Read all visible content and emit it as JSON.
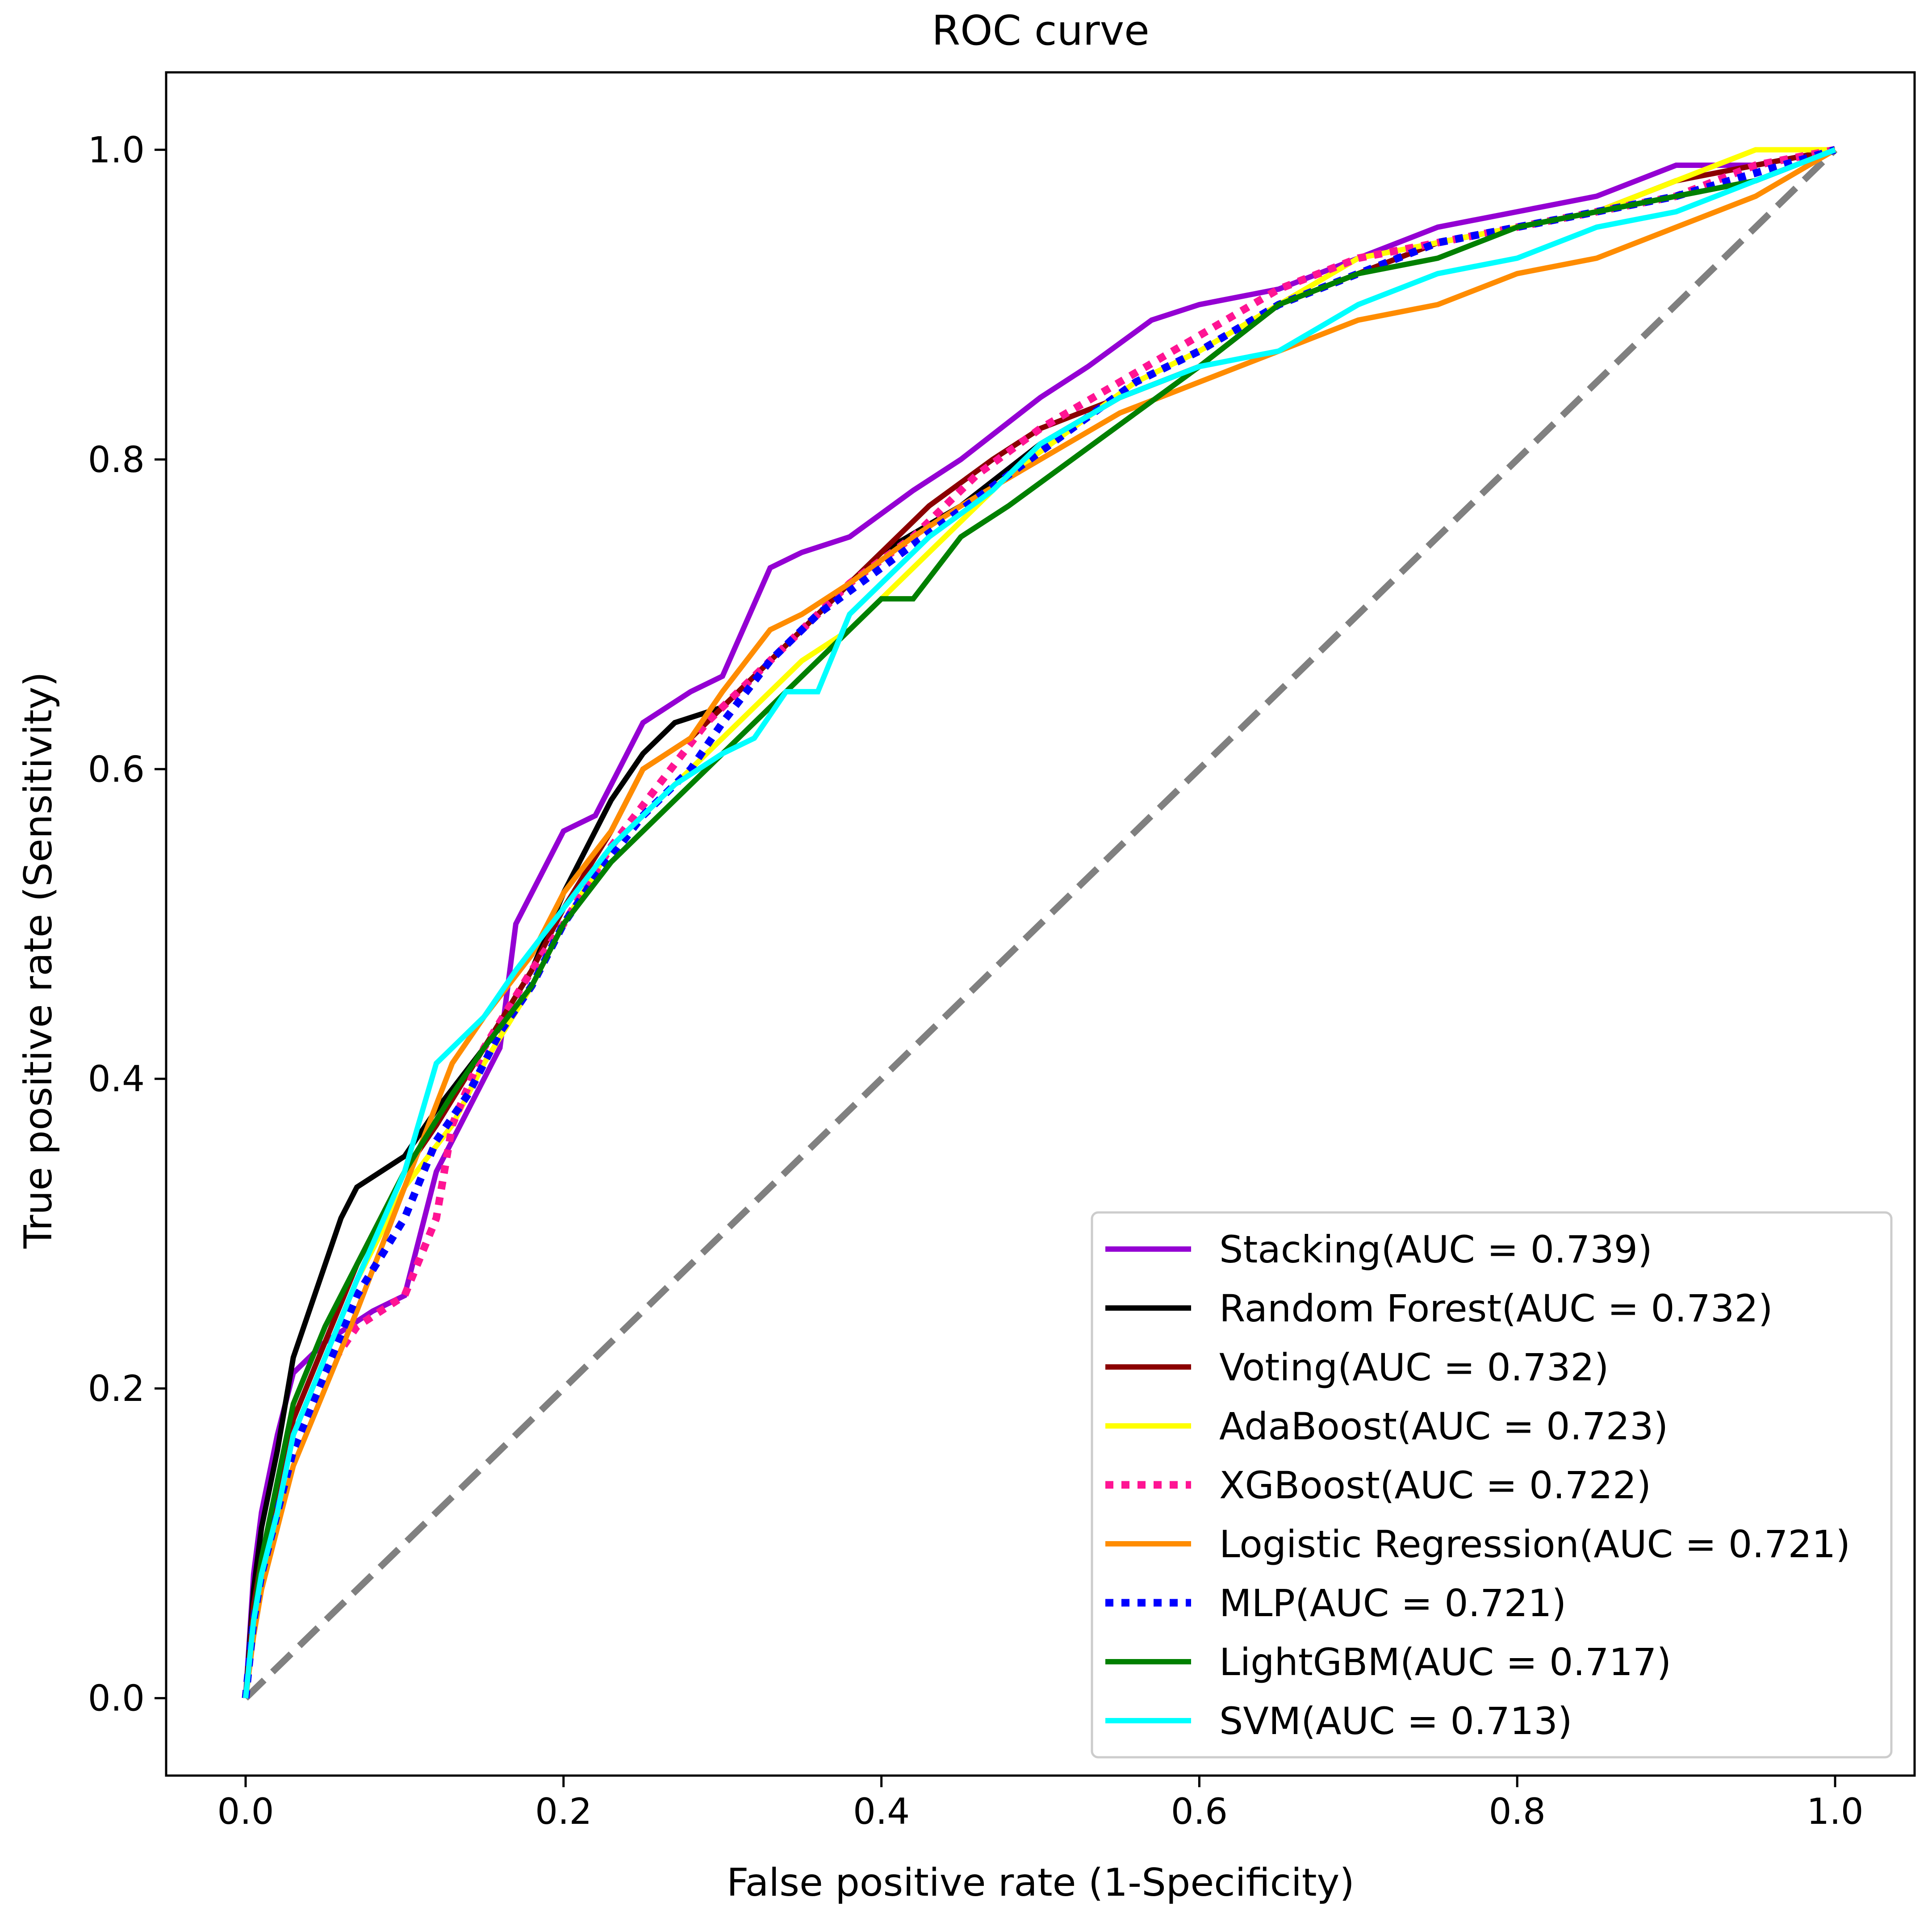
{
  "chart_data": {
    "type": "line",
    "title": "ROC curve",
    "xlabel": "False positive rate (1-Specificity)",
    "ylabel": "True positive rate (Sensitivity)",
    "xlim": [
      -0.05,
      1.05
    ],
    "ylim": [
      -0.05,
      1.05
    ],
    "xticks": [
      0.0,
      0.2,
      0.4,
      0.6,
      0.8,
      1.0
    ],
    "yticks": [
      0.0,
      0.2,
      0.4,
      0.6,
      0.8,
      1.0
    ],
    "xtick_labels": [
      "0.0",
      "0.2",
      "0.4",
      "0.6",
      "0.8",
      "1.0"
    ],
    "ytick_labels": [
      "0.0",
      "0.2",
      "0.4",
      "0.6",
      "0.8",
      "1.0"
    ],
    "legend_position": "lower-right",
    "grid": false,
    "diagonal": {
      "x": [
        0,
        1
      ],
      "y": [
        0,
        1
      ],
      "color": "#808080",
      "style": "dashed"
    },
    "series": [
      {
        "name": "Stacking",
        "label": "Stacking(AUC = 0.739)",
        "auc": 0.739,
        "color": "#9400d3",
        "style": "solid",
        "x": [
          0,
          0.005,
          0.01,
          0.02,
          0.03,
          0.05,
          0.08,
          0.1,
          0.12,
          0.14,
          0.16,
          0.17,
          0.2,
          0.22,
          0.25,
          0.28,
          0.3,
          0.33,
          0.35,
          0.38,
          0.42,
          0.45,
          0.5,
          0.53,
          0.57,
          0.6,
          0.65,
          0.7,
          0.75,
          0.8,
          0.85,
          0.9,
          0.95,
          1.0
        ],
        "y": [
          0,
          0.08,
          0.12,
          0.17,
          0.21,
          0.23,
          0.25,
          0.26,
          0.34,
          0.38,
          0.42,
          0.5,
          0.56,
          0.57,
          0.63,
          0.65,
          0.66,
          0.73,
          0.74,
          0.75,
          0.78,
          0.8,
          0.84,
          0.86,
          0.89,
          0.9,
          0.91,
          0.93,
          0.95,
          0.96,
          0.97,
          0.99,
          0.99,
          1.0
        ]
      },
      {
        "name": "Random Forest",
        "label": "Random Forest(AUC = 0.732)",
        "auc": 0.732,
        "color": "#000000",
        "style": "solid",
        "x": [
          0,
          0.005,
          0.01,
          0.02,
          0.03,
          0.05,
          0.06,
          0.07,
          0.1,
          0.12,
          0.15,
          0.18,
          0.2,
          0.23,
          0.25,
          0.27,
          0.3,
          0.33,
          0.36,
          0.4,
          0.45,
          0.5,
          0.55,
          0.6,
          0.65,
          0.7,
          0.75,
          0.8,
          0.85,
          0.9,
          0.95,
          1.0
        ],
        "y": [
          0,
          0.07,
          0.11,
          0.16,
          0.22,
          0.28,
          0.31,
          0.33,
          0.35,
          0.38,
          0.42,
          0.47,
          0.52,
          0.58,
          0.61,
          0.63,
          0.64,
          0.67,
          0.7,
          0.74,
          0.77,
          0.81,
          0.84,
          0.86,
          0.9,
          0.92,
          0.94,
          0.95,
          0.96,
          0.97,
          0.98,
          1.0
        ]
      },
      {
        "name": "Voting",
        "label": "Voting(AUC = 0.732)",
        "auc": 0.732,
        "color": "#8b0000",
        "style": "solid",
        "x": [
          0,
          0.005,
          0.01,
          0.02,
          0.03,
          0.05,
          0.07,
          0.1,
          0.12,
          0.15,
          0.18,
          0.2,
          0.23,
          0.25,
          0.28,
          0.3,
          0.33,
          0.36,
          0.4,
          0.43,
          0.47,
          0.5,
          0.55,
          0.6,
          0.65,
          0.7,
          0.75,
          0.8,
          0.85,
          0.9,
          0.95,
          1.0
        ],
        "y": [
          0,
          0.06,
          0.09,
          0.13,
          0.18,
          0.23,
          0.28,
          0.34,
          0.37,
          0.42,
          0.47,
          0.51,
          0.56,
          0.6,
          0.62,
          0.64,
          0.67,
          0.7,
          0.74,
          0.77,
          0.8,
          0.82,
          0.84,
          0.86,
          0.9,
          0.92,
          0.94,
          0.95,
          0.96,
          0.98,
          0.99,
          1.0
        ]
      },
      {
        "name": "AdaBoost",
        "label": "AdaBoost(AUC = 0.723)",
        "auc": 0.723,
        "color": "#ffff00",
        "style": "solid",
        "x": [
          0,
          0.005,
          0.01,
          0.02,
          0.03,
          0.05,
          0.07,
          0.1,
          0.13,
          0.15,
          0.18,
          0.2,
          0.23,
          0.26,
          0.29,
          0.32,
          0.35,
          0.38,
          0.41,
          0.44,
          0.48,
          0.52,
          0.56,
          0.6,
          0.65,
          0.7,
          0.75,
          0.8,
          0.85,
          0.9,
          0.95,
          1.0
        ],
        "y": [
          0,
          0.05,
          0.08,
          0.12,
          0.17,
          0.22,
          0.27,
          0.33,
          0.37,
          0.41,
          0.46,
          0.5,
          0.55,
          0.58,
          0.61,
          0.64,
          0.67,
          0.69,
          0.72,
          0.75,
          0.79,
          0.82,
          0.85,
          0.87,
          0.9,
          0.93,
          0.94,
          0.95,
          0.96,
          0.98,
          1.0,
          1.0
        ]
      },
      {
        "name": "XGBoost",
        "label": "XGBoost(AUC = 0.722)",
        "auc": 0.722,
        "color": "#ff1493",
        "style": "dotted",
        "x": [
          0,
          0.005,
          0.01,
          0.02,
          0.03,
          0.05,
          0.07,
          0.1,
          0.12,
          0.13,
          0.15,
          0.18,
          0.2,
          0.23,
          0.26,
          0.29,
          0.32,
          0.35,
          0.38,
          0.42,
          0.46,
          0.5,
          0.55,
          0.6,
          0.65,
          0.7,
          0.75,
          0.8,
          0.85,
          0.9,
          0.95,
          1.0
        ],
        "y": [
          0,
          0.05,
          0.08,
          0.12,
          0.16,
          0.21,
          0.24,
          0.26,
          0.31,
          0.37,
          0.42,
          0.47,
          0.5,
          0.55,
          0.59,
          0.63,
          0.66,
          0.69,
          0.72,
          0.75,
          0.79,
          0.82,
          0.85,
          0.88,
          0.91,
          0.93,
          0.94,
          0.95,
          0.96,
          0.97,
          0.99,
          1.0
        ]
      },
      {
        "name": "Logistic Regression",
        "label": "Logistic Regression(AUC = 0.721)",
        "auc": 0.721,
        "color": "#ff8c00",
        "style": "solid",
        "x": [
          0,
          0.005,
          0.01,
          0.02,
          0.03,
          0.05,
          0.07,
          0.1,
          0.13,
          0.15,
          0.18,
          0.2,
          0.23,
          0.25,
          0.28,
          0.3,
          0.33,
          0.35,
          0.38,
          0.42,
          0.45,
          0.5,
          0.55,
          0.6,
          0.65,
          0.7,
          0.75,
          0.8,
          0.85,
          0.9,
          0.95,
          1.0
        ],
        "y": [
          0,
          0.04,
          0.07,
          0.11,
          0.15,
          0.2,
          0.25,
          0.33,
          0.41,
          0.44,
          0.48,
          0.52,
          0.56,
          0.6,
          0.62,
          0.65,
          0.69,
          0.7,
          0.72,
          0.75,
          0.77,
          0.8,
          0.83,
          0.85,
          0.87,
          0.89,
          0.9,
          0.92,
          0.93,
          0.95,
          0.97,
          1.0
        ]
      },
      {
        "name": "MLP",
        "label": "MLP(AUC = 0.721)",
        "auc": 0.721,
        "color": "#0000ff",
        "style": "dotted",
        "x": [
          0,
          0.005,
          0.01,
          0.02,
          0.03,
          0.05,
          0.07,
          0.1,
          0.12,
          0.14,
          0.16,
          0.18,
          0.2,
          0.22,
          0.25,
          0.28,
          0.3,
          0.33,
          0.36,
          0.4,
          0.44,
          0.48,
          0.52,
          0.56,
          0.6,
          0.65,
          0.7,
          0.75,
          0.8,
          0.85,
          0.9,
          1.0
        ],
        "y": [
          0,
          0.05,
          0.08,
          0.12,
          0.16,
          0.21,
          0.26,
          0.31,
          0.36,
          0.39,
          0.43,
          0.46,
          0.5,
          0.53,
          0.57,
          0.6,
          0.63,
          0.67,
          0.7,
          0.73,
          0.76,
          0.79,
          0.82,
          0.85,
          0.87,
          0.9,
          0.92,
          0.94,
          0.95,
          0.96,
          0.97,
          1.0
        ]
      },
      {
        "name": "LightGBM",
        "label": "LightGBM(AUC = 0.717)",
        "auc": 0.717,
        "color": "#008000",
        "style": "solid",
        "x": [
          0,
          0.005,
          0.01,
          0.02,
          0.03,
          0.05,
          0.07,
          0.1,
          0.13,
          0.15,
          0.18,
          0.2,
          0.23,
          0.26,
          0.29,
          0.32,
          0.35,
          0.38,
          0.4,
          0.42,
          0.45,
          0.48,
          0.52,
          0.56,
          0.6,
          0.65,
          0.7,
          0.75,
          0.8,
          0.85,
          0.9,
          0.95,
          1.0
        ],
        "y": [
          0,
          0.05,
          0.09,
          0.14,
          0.19,
          0.24,
          0.28,
          0.34,
          0.39,
          0.42,
          0.46,
          0.5,
          0.54,
          0.57,
          0.6,
          0.63,
          0.66,
          0.69,
          0.71,
          0.71,
          0.75,
          0.77,
          0.8,
          0.83,
          0.86,
          0.9,
          0.92,
          0.93,
          0.95,
          0.96,
          0.97,
          0.98,
          1.0
        ]
      },
      {
        "name": "SVM",
        "label": "SVM(AUC = 0.713)",
        "auc": 0.713,
        "color": "#00ffff",
        "style": "solid",
        "x": [
          0,
          0.005,
          0.01,
          0.02,
          0.03,
          0.05,
          0.07,
          0.1,
          0.12,
          0.15,
          0.17,
          0.2,
          0.23,
          0.27,
          0.3,
          0.32,
          0.34,
          0.36,
          0.38,
          0.4,
          0.43,
          0.47,
          0.5,
          0.55,
          0.6,
          0.65,
          0.7,
          0.75,
          0.8,
          0.85,
          0.9,
          0.95,
          1.0
        ],
        "y": [
          0,
          0.05,
          0.08,
          0.12,
          0.17,
          0.22,
          0.27,
          0.34,
          0.41,
          0.44,
          0.47,
          0.51,
          0.55,
          0.59,
          0.61,
          0.62,
          0.65,
          0.65,
          0.7,
          0.72,
          0.75,
          0.78,
          0.81,
          0.84,
          0.86,
          0.87,
          0.9,
          0.92,
          0.93,
          0.95,
          0.96,
          0.98,
          1.0
        ]
      }
    ]
  }
}
